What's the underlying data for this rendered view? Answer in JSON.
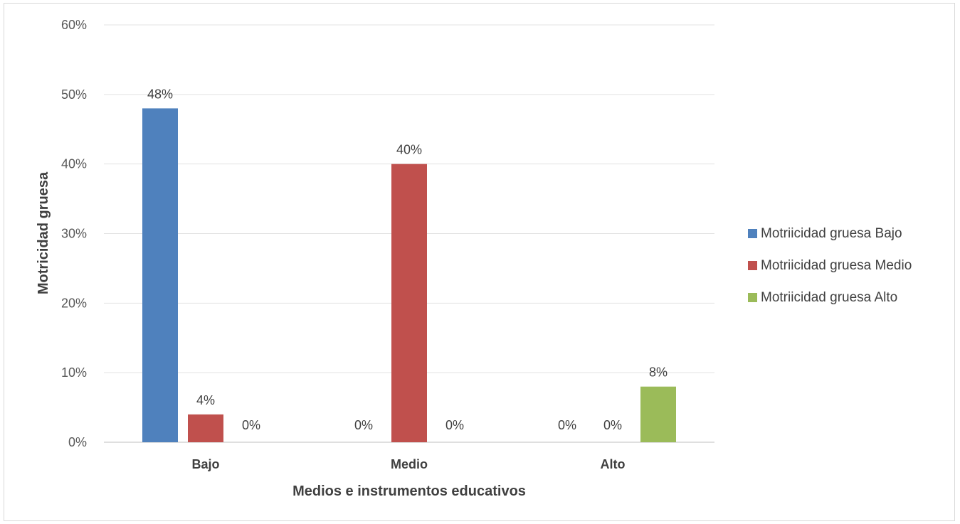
{
  "chart_data": {
    "type": "bar",
    "title": "",
    "xlabel": "Medios e instrumentos  educativos",
    "ylabel": "Motricidad gruesa",
    "ylim": [
      0,
      60
    ],
    "y_ticks": [
      0,
      10,
      20,
      30,
      40,
      50,
      60
    ],
    "y_tick_labels": [
      "0%",
      "10%",
      "20%",
      "30%",
      "40%",
      "50%",
      "60%"
    ],
    "categories": [
      "Bajo",
      "Medio",
      "Alto"
    ],
    "series": [
      {
        "name": "Motriicidad gruesa Bajo",
        "values": [
          48,
          0,
          0
        ],
        "labels": [
          "48%",
          "0%",
          "0%"
        ],
        "color": "#4f81bd"
      },
      {
        "name": "Motriicidad gruesa Medio",
        "values": [
          4,
          40,
          0
        ],
        "labels": [
          "4%",
          "40%",
          "0%"
        ],
        "color": "#c0504d"
      },
      {
        "name": "Motriicidad gruesa Alto",
        "values": [
          0,
          0,
          8
        ],
        "labels": [
          "0%",
          "0%",
          "8%"
        ],
        "color": "#9bbb59"
      }
    ],
    "grid": true,
    "legend_position": "right"
  }
}
